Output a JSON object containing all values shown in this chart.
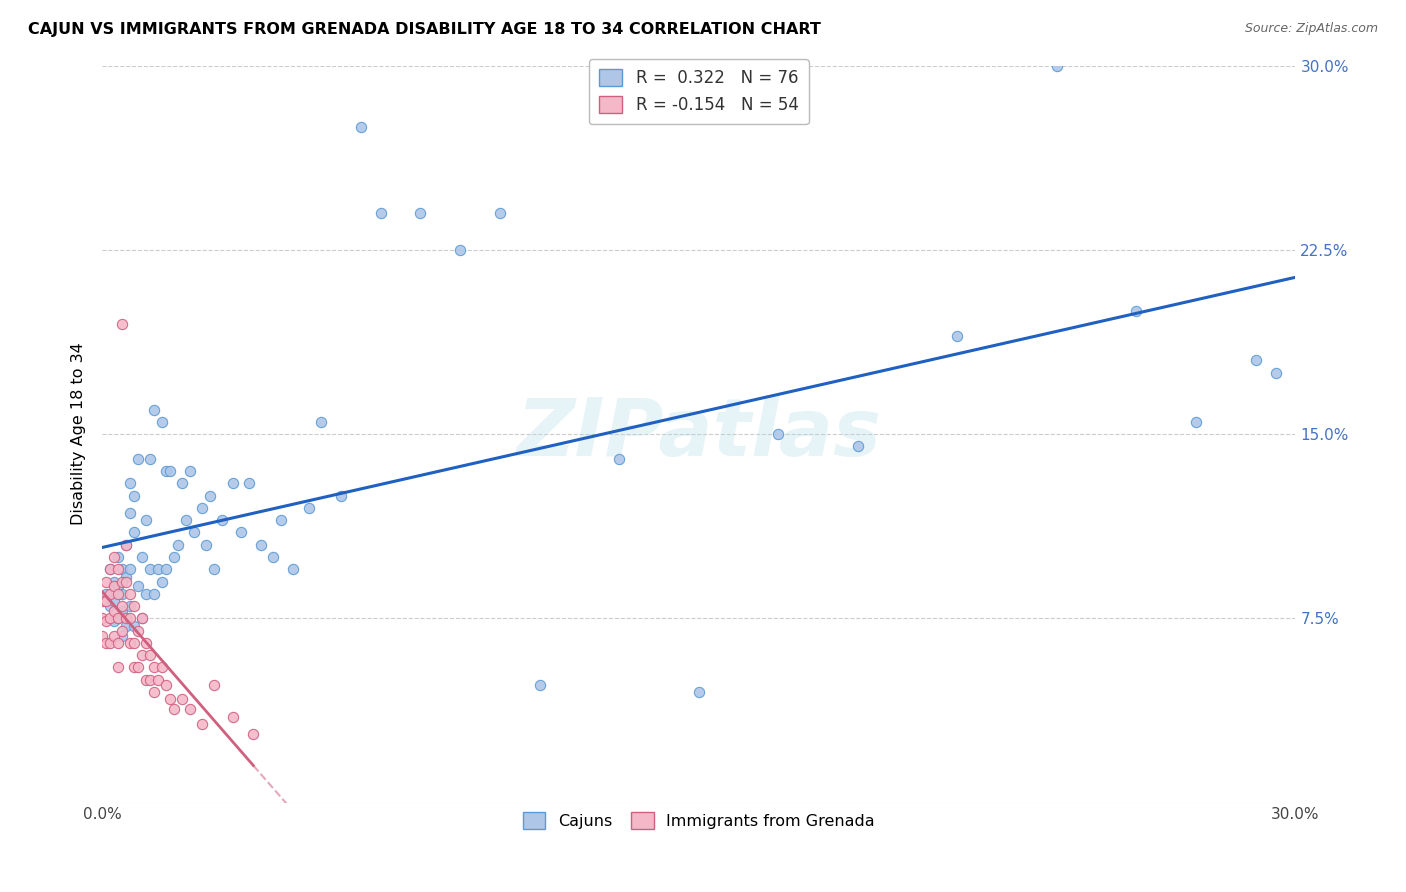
{
  "title": "CAJUN VS IMMIGRANTS FROM GRENADA DISABILITY AGE 18 TO 34 CORRELATION CHART",
  "source": "Source: ZipAtlas.com",
  "ylabel": "Disability Age 18 to 34",
  "xlim": [
    0.0,
    0.3
  ],
  "ylim": [
    0.0,
    0.3
  ],
  "xticks": [
    0.0,
    0.05,
    0.1,
    0.15,
    0.2,
    0.25,
    0.3
  ],
  "yticks": [
    0.0,
    0.075,
    0.15,
    0.225,
    0.3
  ],
  "watermark_text": "ZIPatlas",
  "cajun_color": "#aec6e8",
  "cajun_edge_color": "#5b9bd5",
  "grenada_color": "#f4b8c8",
  "grenada_edge_color": "#d06080",
  "cajun_line_color": "#2060c0",
  "grenada_line_color": "#d06080",
  "R_cajun": 0.322,
  "N_cajun": 76,
  "R_grenada": -0.154,
  "N_grenada": 54,
  "cajun_x": [
    0.001,
    0.002,
    0.002,
    0.003,
    0.003,
    0.003,
    0.004,
    0.004,
    0.004,
    0.005,
    0.005,
    0.005,
    0.005,
    0.006,
    0.006,
    0.006,
    0.007,
    0.007,
    0.007,
    0.007,
    0.008,
    0.008,
    0.008,
    0.009,
    0.009,
    0.01,
    0.01,
    0.011,
    0.011,
    0.012,
    0.012,
    0.013,
    0.013,
    0.014,
    0.015,
    0.015,
    0.016,
    0.016,
    0.017,
    0.018,
    0.019,
    0.02,
    0.021,
    0.022,
    0.023,
    0.025,
    0.026,
    0.027,
    0.028,
    0.03,
    0.033,
    0.035,
    0.037,
    0.04,
    0.043,
    0.045,
    0.048,
    0.052,
    0.055,
    0.06,
    0.065,
    0.07,
    0.08,
    0.09,
    0.1,
    0.11,
    0.13,
    0.15,
    0.17,
    0.19,
    0.215,
    0.24,
    0.26,
    0.275,
    0.29,
    0.295
  ],
  "cajun_y": [
    0.085,
    0.095,
    0.08,
    0.09,
    0.082,
    0.074,
    0.1,
    0.088,
    0.075,
    0.095,
    0.085,
    0.078,
    0.068,
    0.105,
    0.092,
    0.072,
    0.13,
    0.118,
    0.095,
    0.08,
    0.125,
    0.11,
    0.072,
    0.14,
    0.088,
    0.1,
    0.075,
    0.115,
    0.085,
    0.14,
    0.095,
    0.16,
    0.085,
    0.095,
    0.155,
    0.09,
    0.135,
    0.095,
    0.135,
    0.1,
    0.105,
    0.13,
    0.115,
    0.135,
    0.11,
    0.12,
    0.105,
    0.125,
    0.095,
    0.115,
    0.13,
    0.11,
    0.13,
    0.105,
    0.1,
    0.115,
    0.095,
    0.12,
    0.155,
    0.125,
    0.275,
    0.24,
    0.24,
    0.225,
    0.24,
    0.048,
    0.14,
    0.045,
    0.15,
    0.145,
    0.19,
    0.3,
    0.2,
    0.155,
    0.18,
    0.175
  ],
  "grenada_x": [
    0.0,
    0.0,
    0.0,
    0.001,
    0.001,
    0.001,
    0.001,
    0.002,
    0.002,
    0.002,
    0.002,
    0.003,
    0.003,
    0.003,
    0.003,
    0.004,
    0.004,
    0.004,
    0.004,
    0.004,
    0.005,
    0.005,
    0.005,
    0.005,
    0.006,
    0.006,
    0.006,
    0.007,
    0.007,
    0.007,
    0.008,
    0.008,
    0.008,
    0.009,
    0.009,
    0.01,
    0.01,
    0.011,
    0.011,
    0.012,
    0.012,
    0.013,
    0.013,
    0.014,
    0.015,
    0.016,
    0.017,
    0.018,
    0.02,
    0.022,
    0.025,
    0.028,
    0.033,
    0.038
  ],
  "grenada_y": [
    0.082,
    0.075,
    0.068,
    0.09,
    0.082,
    0.074,
    0.065,
    0.095,
    0.085,
    0.075,
    0.065,
    0.1,
    0.088,
    0.078,
    0.068,
    0.095,
    0.085,
    0.075,
    0.065,
    0.055,
    0.195,
    0.09,
    0.08,
    0.07,
    0.105,
    0.09,
    0.075,
    0.085,
    0.075,
    0.065,
    0.08,
    0.065,
    0.055,
    0.07,
    0.055,
    0.075,
    0.06,
    0.065,
    0.05,
    0.06,
    0.05,
    0.055,
    0.045,
    0.05,
    0.055,
    0.048,
    0.042,
    0.038,
    0.042,
    0.038,
    0.032,
    0.048,
    0.035,
    0.028
  ]
}
